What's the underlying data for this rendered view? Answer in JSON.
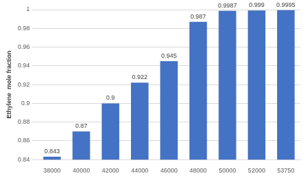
{
  "chart_data": {
    "type": "bar",
    "y_label": "Ethylene  mole fraction",
    "categories": [
      "38000",
      "40000",
      "42000",
      "44000",
      "46000",
      "48000",
      "50000",
      "52000",
      "53750"
    ],
    "values": [
      0.843,
      0.87,
      0.9,
      0.922,
      0.945,
      0.987,
      0.9987,
      0.999,
      0.9995
    ],
    "color": "#4472c4",
    "ylim": [
      0.84,
      1
    ],
    "yticks": [
      0.84,
      0.86,
      0.88,
      0.9,
      0.92,
      0.94,
      0.96,
      0.98,
      1
    ],
    "grid": true,
    "data_labels": true
  }
}
